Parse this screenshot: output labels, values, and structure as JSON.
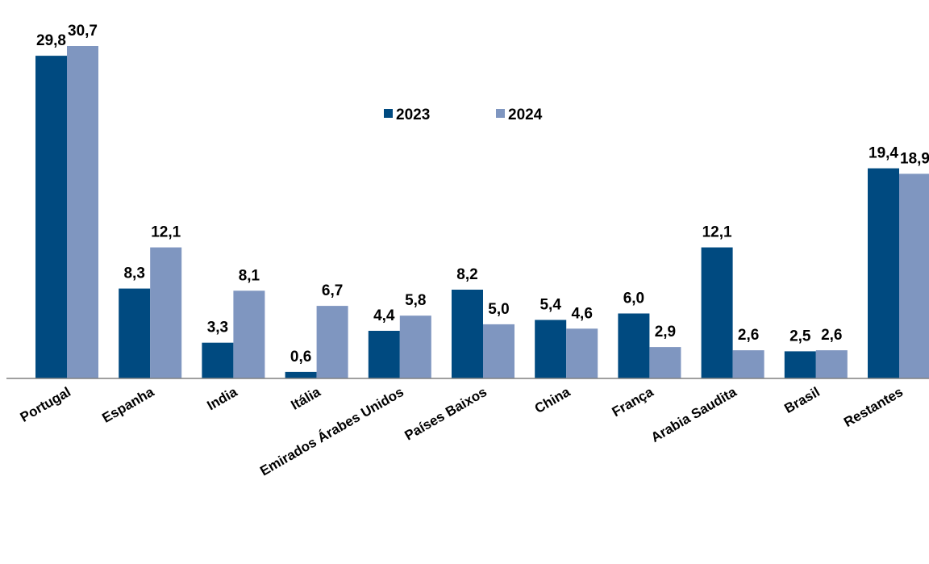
{
  "chart_data": {
    "type": "bar",
    "title": "",
    "xlabel": "",
    "ylabel": "",
    "ylim": [
      0,
      30.7
    ],
    "grid": false,
    "legend_position": "top-center",
    "categories": [
      "Portugal",
      "Espanha",
      "India",
      "Itália",
      "Emirados Árabes Unidos",
      "Países Baixos",
      "China",
      "França",
      "Arabia Saudita",
      "Brasil",
      "Restantes"
    ],
    "series": [
      {
        "name": "2023",
        "color": "#004a80",
        "values": [
          29.8,
          8.3,
          3.3,
          0.6,
          4.4,
          8.2,
          5.4,
          6.0,
          12.1,
          2.5,
          19.4
        ],
        "labels": [
          "29,8",
          "8,3",
          "3,3",
          "0,6",
          "4,4",
          "8,2",
          "5,4",
          "6,0",
          "12,1",
          "2,5",
          "19,4"
        ]
      },
      {
        "name": "2024",
        "color": "#7f96c0",
        "values": [
          30.7,
          12.1,
          8.1,
          6.7,
          5.8,
          5.0,
          4.6,
          2.9,
          2.6,
          2.6,
          18.9
        ],
        "labels": [
          "30,7",
          "12,1",
          "8,1",
          "6,7",
          "5,8",
          "5,0",
          "4,6",
          "2,9",
          "2,6",
          "2,6",
          "18,9"
        ]
      }
    ]
  }
}
